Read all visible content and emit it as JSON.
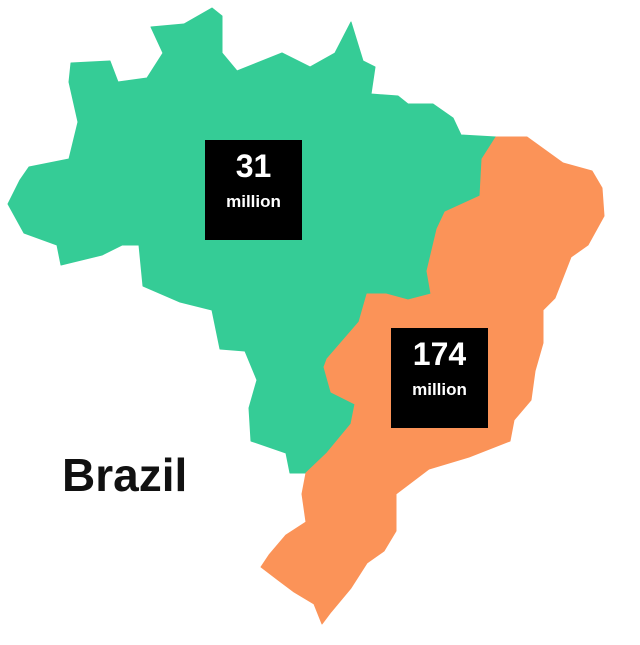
{
  "map": {
    "title": "Brazil",
    "regions": [
      {
        "id": "north-west",
        "color": "#35cc96",
        "value": "31",
        "unit": "million"
      },
      {
        "id": "south-east",
        "color": "#fb9358",
        "value": "174",
        "unit": "million"
      }
    ]
  }
}
